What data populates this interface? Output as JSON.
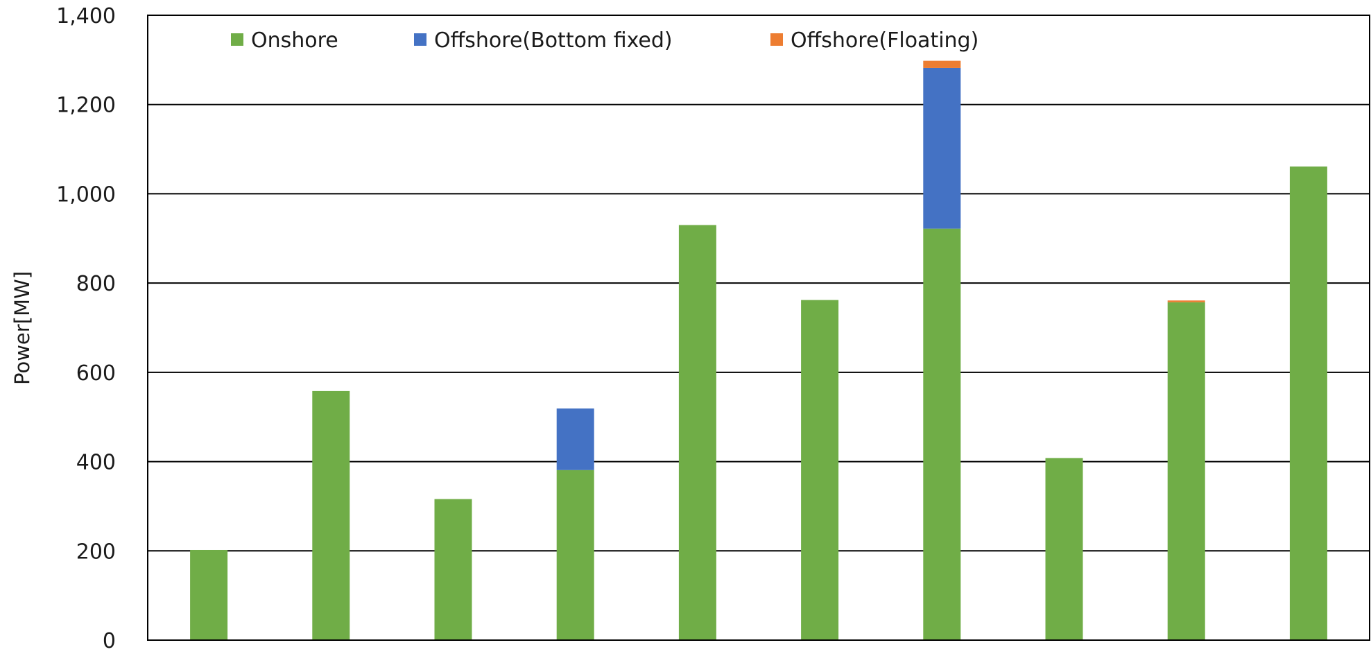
{
  "chart_data": {
    "type": "bar",
    "stacked": true,
    "title": "",
    "xlabel": "",
    "ylabel": "Power[MW]",
    "ylim": [
      0,
      1400
    ],
    "y_ticks": [
      0,
      200,
      400,
      600,
      800,
      1000,
      1200,
      1400
    ],
    "y_tick_labels": [
      "0",
      "200",
      "400",
      "600",
      "800",
      "1,000",
      "1,200",
      "1,400"
    ],
    "grid": "horizontal",
    "legend_placement": "top",
    "categories": [
      "",
      "",
      "",
      "",
      "",
      "",
      "",
      "",
      "",
      ""
    ],
    "series": [
      {
        "name": "Onshore",
        "color": "#70ad47",
        "values": [
          202,
          558,
          316,
          381,
          930,
          762,
          922,
          408,
          757,
          1061
        ]
      },
      {
        "name": "Offshore(Bottom fixed)",
        "color": "#4472c4",
        "values": [
          0,
          0,
          0,
          138,
          0,
          0,
          360,
          0,
          0,
          0
        ]
      },
      {
        "name": "Offshore(Floating)",
        "color": "#ed7d31",
        "values": [
          0,
          0,
          0,
          0,
          0,
          0,
          16,
          0,
          4,
          0
        ]
      }
    ]
  }
}
